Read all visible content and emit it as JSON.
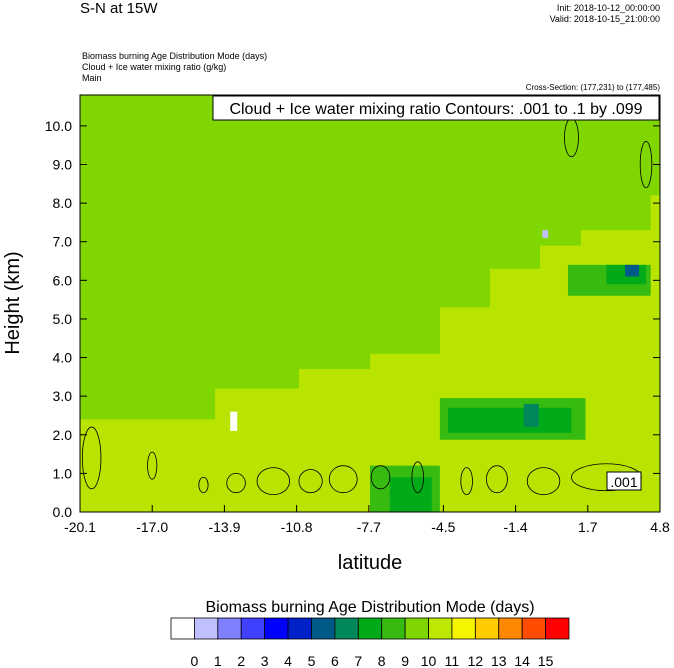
{
  "header": {
    "title": "S-N at 15W",
    "init": "Init: 2018-10-12_00:00:00",
    "valid": "Valid: 2018-10-15_21:00:00",
    "field1": "Biomass burning Age Distribution Mode   (days)",
    "field2": "Cloud + Ice water mixing ratio   (g/kg)",
    "field3": "Main",
    "cross_section": "Cross-Section: (177,231) to (177,485)"
  },
  "chart_data": {
    "type": "heatmap",
    "contour_label": "Cloud + Ice water mixing ratio Contours: .001 to .1 by .099",
    "contour_inline_label": ".001",
    "xlabel": "latitude",
    "ylabel": "Height (km)",
    "xlim": [
      -20.1,
      4.8
    ],
    "ylim": [
      0,
      10.8
    ],
    "xticks": [
      "-20.1",
      "-17.0",
      "-13.9",
      "-10.8",
      "-7.7",
      "-4.5",
      "-1.4",
      "1.7",
      "4.8"
    ],
    "xtick_values": [
      -20.1,
      -17.0,
      -13.9,
      -10.8,
      -7.7,
      -4.5,
      -1.4,
      1.7,
      4.8
    ],
    "yticks": [
      "0.0",
      "1.0",
      "2.0",
      "3.0",
      "4.0",
      "5.0",
      "6.0",
      "7.0",
      "8.0",
      "9.0",
      "10.0"
    ],
    "colorbar": {
      "title": "Biomass burning Age Distribution Mode  (days)",
      "labels": [
        "0",
        "1",
        "2",
        "3",
        "4",
        "5",
        "6",
        "7",
        "8",
        "9",
        "10",
        "11",
        "12",
        "13",
        "14",
        "15"
      ],
      "colors": [
        "#ffffff",
        "#c0c0ff",
        "#8080ff",
        "#4040ff",
        "#0000ff",
        "#0020c8",
        "#005a88",
        "#00885a",
        "#00aa18",
        "#38bb10",
        "#7fd600",
        "#bde800",
        "#f5f500",
        "#ffcc00",
        "#ff8800",
        "#ff4c00",
        "#ff0000"
      ]
    },
    "regions": [
      {
        "value_class": 10,
        "color": "#7fd600",
        "polygon": [
          [
            -20.1,
            10.8
          ],
          [
            4.8,
            10.8
          ],
          [
            4.8,
            8.2
          ],
          [
            4.4,
            8.2
          ],
          [
            4.4,
            7.3
          ],
          [
            1.4,
            7.3
          ],
          [
            1.4,
            6.9
          ],
          [
            -0.35,
            6.9
          ],
          [
            -0.35,
            6.3
          ],
          [
            -2.5,
            6.3
          ],
          [
            -2.5,
            5.3
          ],
          [
            -4.65,
            5.3
          ],
          [
            -4.65,
            4.1
          ],
          [
            -7.65,
            4.1
          ],
          [
            -7.65,
            3.7
          ],
          [
            -10.7,
            3.7
          ],
          [
            -10.7,
            3.2
          ],
          [
            -14.3,
            3.2
          ],
          [
            -14.3,
            2.4
          ],
          [
            -20.1,
            2.4
          ]
        ]
      },
      {
        "value_class": 9,
        "color": "#38bb10",
        "polygon": [
          [
            -4.65,
            2.95
          ],
          [
            1.6,
            2.95
          ],
          [
            1.6,
            1.87
          ],
          [
            -4.65,
            1.87
          ]
        ]
      },
      {
        "value_class": 8,
        "color": "#00aa18",
        "polygon": [
          [
            -4.3,
            2.7
          ],
          [
            1.0,
            2.7
          ],
          [
            1.0,
            2.05
          ],
          [
            -4.3,
            2.05
          ]
        ]
      },
      {
        "value_class": 7,
        "color": "#00885a",
        "polygon": [
          [
            -1.05,
            2.8
          ],
          [
            -0.4,
            2.8
          ],
          [
            -0.4,
            2.2
          ],
          [
            -1.05,
            2.2
          ]
        ]
      },
      {
        "value_class": 9,
        "color": "#38bb10",
        "polygon": [
          [
            -7.65,
            1.2
          ],
          [
            -4.65,
            1.2
          ],
          [
            -4.65,
            0
          ],
          [
            -7.65,
            0
          ]
        ]
      },
      {
        "value_class": 8,
        "color": "#00aa18",
        "polygon": [
          [
            -6.8,
            0.9
          ],
          [
            -5.0,
            0.9
          ],
          [
            -5.0,
            0
          ],
          [
            -6.8,
            0
          ]
        ]
      },
      {
        "value_class": 9,
        "color": "#38bb10",
        "polygon": [
          [
            0.85,
            6.4
          ],
          [
            4.4,
            6.4
          ],
          [
            4.4,
            5.6
          ],
          [
            0.85,
            5.6
          ]
        ]
      },
      {
        "value_class": 8,
        "color": "#00aa18",
        "polygon": [
          [
            2.5,
            6.4
          ],
          [
            4.2,
            6.4
          ],
          [
            4.2,
            5.9
          ],
          [
            2.5,
            5.9
          ]
        ]
      },
      {
        "value_class": 6,
        "color": "#005a88",
        "polygon": [
          [
            3.3,
            6.4
          ],
          [
            3.9,
            6.4
          ],
          [
            3.9,
            6.1
          ],
          [
            3.3,
            6.1
          ]
        ]
      },
      {
        "value_class": 0,
        "color": "#ffffff",
        "polygon": [
          [
            -13.65,
            2.6
          ],
          [
            -13.35,
            2.6
          ],
          [
            -13.35,
            2.1
          ],
          [
            -13.65,
            2.1
          ]
        ]
      },
      {
        "value_class": 1,
        "color": "#c0c0ff",
        "polygon": [
          [
            -0.25,
            7.3
          ],
          [
            0.0,
            7.3
          ],
          [
            0.0,
            7.1
          ],
          [
            -0.25,
            7.1
          ]
        ]
      }
    ],
    "contours": [
      {
        "cx": -19.6,
        "cy": 1.4,
        "rx": 0.4,
        "ry": 0.8
      },
      {
        "cx": -17.0,
        "cy": 1.2,
        "rx": 0.2,
        "ry": 0.35
      },
      {
        "cx": -14.8,
        "cy": 0.7,
        "rx": 0.2,
        "ry": 0.2
      },
      {
        "cx": -13.4,
        "cy": 0.75,
        "rx": 0.4,
        "ry": 0.25
      },
      {
        "cx": -11.8,
        "cy": 0.8,
        "rx": 0.7,
        "ry": 0.35
      },
      {
        "cx": -10.2,
        "cy": 0.8,
        "rx": 0.5,
        "ry": 0.3
      },
      {
        "cx": -8.8,
        "cy": 0.85,
        "rx": 0.6,
        "ry": 0.35
      },
      {
        "cx": -7.2,
        "cy": 0.9,
        "rx": 0.4,
        "ry": 0.3
      },
      {
        "cx": -5.6,
        "cy": 0.9,
        "rx": 0.25,
        "ry": 0.4
      },
      {
        "cx": -3.5,
        "cy": 0.8,
        "rx": 0.25,
        "ry": 0.35
      },
      {
        "cx": -2.2,
        "cy": 0.85,
        "rx": 0.45,
        "ry": 0.35
      },
      {
        "cx": -0.2,
        "cy": 0.8,
        "rx": 0.7,
        "ry": 0.35
      },
      {
        "cx": 2.5,
        "cy": 0.9,
        "rx": 1.5,
        "ry": 0.35
      },
      {
        "cx": 4.2,
        "cy": 9.0,
        "rx": 0.25,
        "ry": 0.6
      },
      {
        "cx": 1.0,
        "cy": 9.7,
        "rx": 0.3,
        "ry": 0.5
      }
    ]
  }
}
